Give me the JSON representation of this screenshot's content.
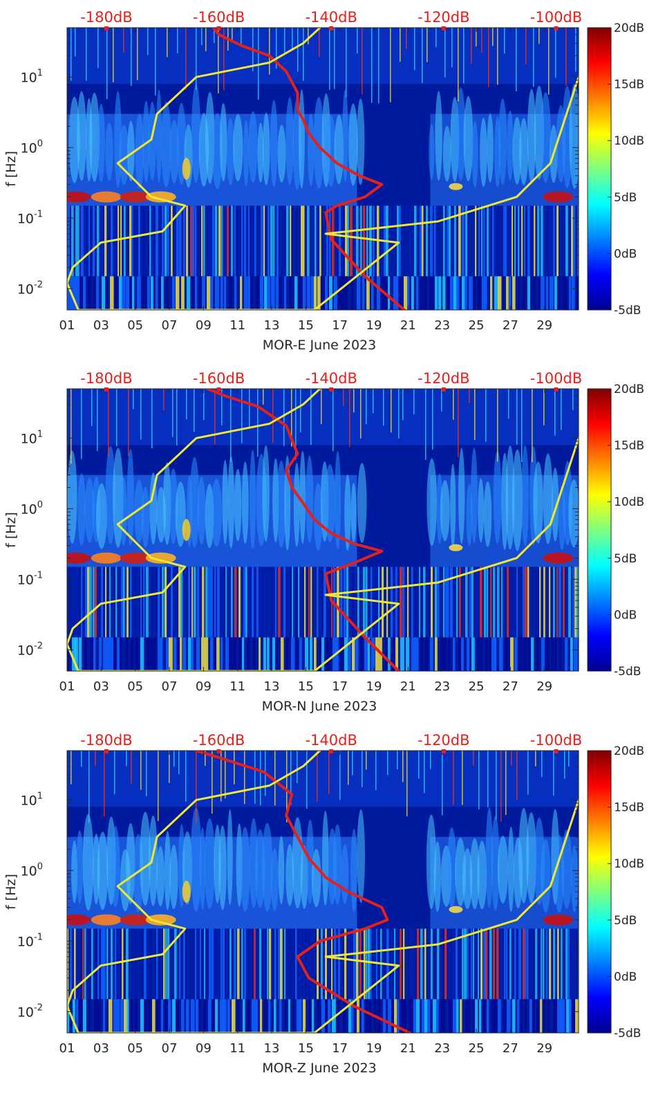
{
  "colors": {
    "spectrogram_low": "#00008f",
    "spectrogram_mid": "#1f9fff",
    "spectrogram_high": "#ffe000",
    "spectrogram_peak": "#8b0000",
    "red_line": "#e5201b",
    "yellow_line": "#f2e830",
    "top_axis_text": "#e5201b",
    "axis_text": "#262626"
  },
  "chart_data": [
    {
      "type": "heatmap",
      "title": "",
      "xlabel": "MOR-E June 2023",
      "ylabel": "f [Hz]",
      "xlim": [
        1,
        31
      ],
      "ylim": [
        0.005,
        50
      ],
      "x_ticks": [
        "01",
        "03",
        "05",
        "07",
        "09",
        "11",
        "13",
        "15",
        "17",
        "19",
        "21",
        "23",
        "25",
        "27",
        "29"
      ],
      "x_tick_values": [
        1,
        3,
        5,
        7,
        9,
        11,
        13,
        15,
        17,
        19,
        21,
        23,
        25,
        27,
        29
      ],
      "y_tick_values": [
        0.01,
        0.1,
        1,
        10
      ],
      "y_ticks": [
        {
          "base": "10",
          "exp": "-2"
        },
        {
          "base": "10",
          "exp": "-1"
        },
        {
          "base": "10",
          "exp": "0"
        },
        {
          "base": "10",
          "exp": "1"
        }
      ],
      "top_axis_ticks": [
        "-180dB",
        "-160dB",
        "-140dB",
        "-120dB",
        "-100dB"
      ],
      "top_axis_values": [
        -180,
        -160,
        -140,
        -120,
        -100
      ],
      "top_axis_range": [
        -187,
        -96
      ],
      "colorbar_ticks": [
        "20dB",
        "15dB",
        "10dB",
        "5dB",
        "0dB",
        "-5dB"
      ],
      "colorbar_values": [
        20,
        15,
        10,
        5,
        0,
        -5
      ],
      "colorbar_range": [
        -5,
        20
      ],
      "series": [
        {
          "name": "red curve (dB)",
          "x_db": [
            -161,
            -160,
            -156,
            -151,
            -148,
            -146,
            -146,
            -145,
            -144,
            -142,
            -139,
            -135,
            -131,
            -134,
            -139,
            -141,
            -140,
            -134,
            -127
          ],
          "freq_hz": [
            50,
            40,
            28,
            20,
            12,
            6,
            3.5,
            2.5,
            1.6,
            1.0,
            0.6,
            0.4,
            0.3,
            0.2,
            0.15,
            0.12,
            0.05,
            0.015,
            0.005
          ]
        },
        {
          "name": "yellow curve (dB)",
          "x_db": [
            -142,
            -145,
            -151,
            -164,
            -171,
            -172,
            -178,
            -172,
            -166,
            -170,
            -181,
            -186,
            -187,
            -185,
            -143,
            -128,
            -141,
            -121,
            -107,
            -101,
            -96
          ],
          "freq_hz": [
            50,
            30,
            16,
            10,
            3,
            1.3,
            0.6,
            0.2,
            0.15,
            0.065,
            0.045,
            0.02,
            0.012,
            0.005,
            0.005,
            0.045,
            0.06,
            0.09,
            0.2,
            0.6,
            10
          ]
        }
      ]
    },
    {
      "type": "heatmap",
      "title": "",
      "xlabel": "MOR-N June 2023",
      "ylabel": "f [Hz]",
      "xlim": [
        1,
        31
      ],
      "ylim": [
        0.005,
        50
      ],
      "x_ticks": [
        "01",
        "03",
        "05",
        "07",
        "09",
        "11",
        "13",
        "15",
        "17",
        "19",
        "21",
        "23",
        "25",
        "27",
        "29"
      ],
      "x_tick_values": [
        1,
        3,
        5,
        7,
        9,
        11,
        13,
        15,
        17,
        19,
        21,
        23,
        25,
        27,
        29
      ],
      "y_tick_values": [
        0.01,
        0.1,
        1,
        10
      ],
      "y_ticks": [
        {
          "base": "10",
          "exp": "-2"
        },
        {
          "base": "10",
          "exp": "-1"
        },
        {
          "base": "10",
          "exp": "0"
        },
        {
          "base": "10",
          "exp": "1"
        }
      ],
      "top_axis_ticks": [
        "-180dB",
        "-160dB",
        "-140dB",
        "-120dB",
        "-100dB"
      ],
      "top_axis_values": [
        -180,
        -160,
        -140,
        -120,
        -100
      ],
      "top_axis_range": [
        -187,
        -96
      ],
      "colorbar_ticks": [
        "20dB",
        "15dB",
        "10dB",
        "5dB",
        "0dB",
        "-5dB"
      ],
      "colorbar_values": [
        20,
        15,
        10,
        5,
        0,
        -5
      ],
      "colorbar_range": [
        -5,
        20
      ],
      "series": [
        {
          "name": "red curve (dB)",
          "x_db": [
            -162,
            -159,
            -153,
            -148,
            -146,
            -148,
            -147,
            -145,
            -143,
            -140,
            -136,
            -131,
            -136,
            -141,
            -140,
            -134,
            -128
          ],
          "freq_hz": [
            50,
            40,
            28,
            15,
            6,
            3.5,
            2.0,
            1.2,
            0.7,
            0.45,
            0.32,
            0.25,
            0.17,
            0.12,
            0.05,
            0.015,
            0.005
          ]
        },
        {
          "name": "yellow curve (dB)",
          "x_db": [
            -142,
            -145,
            -151,
            -164,
            -171,
            -172,
            -178,
            -172,
            -166,
            -170,
            -181,
            -186,
            -187,
            -185,
            -143,
            -128,
            -141,
            -121,
            -107,
            -101,
            -96
          ],
          "freq_hz": [
            50,
            30,
            16,
            10,
            3,
            1.3,
            0.6,
            0.2,
            0.15,
            0.065,
            0.045,
            0.02,
            0.012,
            0.005,
            0.005,
            0.045,
            0.06,
            0.09,
            0.2,
            0.6,
            10
          ]
        }
      ]
    },
    {
      "type": "heatmap",
      "title": "",
      "xlabel": "MOR-Z June 2023",
      "ylabel": "f [Hz]",
      "xlim": [
        1,
        31
      ],
      "ylim": [
        0.005,
        50
      ],
      "x_ticks": [
        "01",
        "03",
        "05",
        "07",
        "09",
        "11",
        "13",
        "15",
        "17",
        "19",
        "21",
        "23",
        "25",
        "27",
        "29"
      ],
      "x_tick_values": [
        1,
        3,
        5,
        7,
        9,
        11,
        13,
        15,
        17,
        19,
        21,
        23,
        25,
        27,
        29
      ],
      "y_tick_values": [
        0.01,
        0.1,
        1,
        10
      ],
      "y_ticks": [
        {
          "base": "10",
          "exp": "-2"
        },
        {
          "base": "10",
          "exp": "-1"
        },
        {
          "base": "10",
          "exp": "0"
        },
        {
          "base": "10",
          "exp": "1"
        }
      ],
      "top_axis_ticks": [
        "-180dB",
        "-160dB",
        "-140dB",
        "-120dB",
        "-100dB"
      ],
      "top_axis_values": [
        -180,
        -160,
        -140,
        -120,
        -100
      ],
      "top_axis_range": [
        -187,
        -96
      ],
      "colorbar_ticks": [
        "20dB",
        "15dB",
        "10dB",
        "5dB",
        "0dB",
        "-5dB"
      ],
      "colorbar_values": [
        20,
        15,
        10,
        5,
        0,
        -5
      ],
      "colorbar_range": [
        -5,
        20
      ],
      "series": [
        {
          "name": "red curve (dB)",
          "x_db": [
            -164,
            -160,
            -152,
            -147,
            -148,
            -146,
            -144,
            -141,
            -137,
            -131,
            -130,
            -134,
            -142,
            -146,
            -144,
            -136,
            -126
          ],
          "freq_hz": [
            50,
            40,
            25,
            12,
            6,
            3.0,
            1.5,
            0.8,
            0.5,
            0.3,
            0.2,
            0.15,
            0.1,
            0.06,
            0.03,
            0.012,
            0.005
          ]
        },
        {
          "name": "yellow curve (dB)",
          "x_db": [
            -142,
            -145,
            -151,
            -164,
            -171,
            -172,
            -178,
            -172,
            -166,
            -170,
            -181,
            -186,
            -187,
            -185,
            -143,
            -128,
            -141,
            -121,
            -107,
            -101,
            -96
          ],
          "freq_hz": [
            50,
            30,
            16,
            10,
            3,
            1.3,
            0.6,
            0.2,
            0.15,
            0.065,
            0.045,
            0.02,
            0.012,
            0.005,
            0.005,
            0.045,
            0.06,
            0.09,
            0.2,
            0.6,
            10
          ]
        }
      ]
    }
  ]
}
